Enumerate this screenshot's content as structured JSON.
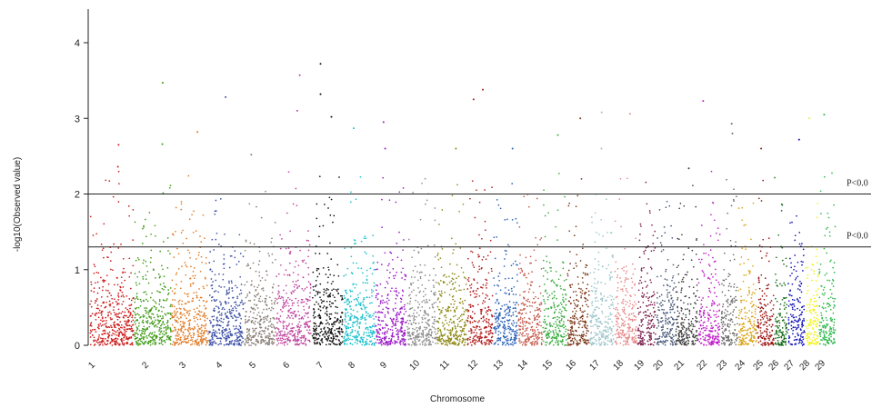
{
  "chart_data": {
    "type": "scatter",
    "xlabel": "Chromosome",
    "ylabel": "-log10(Observed value)",
    "ylim": [
      0,
      4.45
    ],
    "yticks": [
      0,
      1,
      2,
      3,
      4
    ],
    "grid": false,
    "categories": [
      "1",
      "2",
      "3",
      "4",
      "5",
      "6",
      "7",
      "8",
      "9",
      "10",
      "11",
      "12",
      "13",
      "14",
      "15",
      "16",
      "17",
      "18",
      "19",
      "20",
      "21",
      "22",
      "23",
      "24",
      "25",
      "26",
      "27",
      "28",
      "29"
    ],
    "chromosome_widths": [
      48,
      40,
      40,
      38,
      34,
      38,
      34,
      34,
      34,
      32,
      32,
      28,
      26,
      26,
      26,
      24,
      26,
      24,
      20,
      20,
      24,
      24,
      18,
      20,
      18,
      14,
      18,
      14,
      18
    ],
    "colors": [
      "#cc1b1b",
      "#3f9a16",
      "#e07a24",
      "#3b4fa6",
      "#8a7f78",
      "#c0449e",
      "#111111",
      "#18c0cc",
      "#9a19c7",
      "#8c8c8c",
      "#8f8a17",
      "#b21f1f",
      "#2a62b8",
      "#c45a4d",
      "#3cad40",
      "#7a3818",
      "#9ec6cc",
      "#e88a8a",
      "#7a1f4d",
      "#4a5a7a",
      "#404040",
      "#c01ec8",
      "#6b6b6b",
      "#d8a416",
      "#9b1414",
      "#186b18",
      "#1212b8",
      "#f2f214",
      "#2ab848"
    ],
    "thresholds": [
      {
        "value": 2.0,
        "label": "P<0.0"
      },
      {
        "value": 1.301,
        "label": "P<0.0"
      }
    ],
    "notable_points": [
      {
        "chromosome": "1",
        "y": 2.65
      },
      {
        "chromosome": "1",
        "y": 2.36
      },
      {
        "chromosome": "2",
        "y": 3.47
      },
      {
        "chromosome": "2",
        "y": 2.66
      },
      {
        "chromosome": "3",
        "y": 2.82
      },
      {
        "chromosome": "4",
        "y": 3.28
      },
      {
        "chromosome": "5",
        "y": 2.52
      },
      {
        "chromosome": "6",
        "y": 3.57
      },
      {
        "chromosome": "6",
        "y": 3.1
      },
      {
        "chromosome": "7",
        "y": 3.72
      },
      {
        "chromosome": "7",
        "y": 3.32
      },
      {
        "chromosome": "7",
        "y": 3.02
      },
      {
        "chromosome": "8",
        "y": 2.87
      },
      {
        "chromosome": "9",
        "y": 2.95
      },
      {
        "chromosome": "9",
        "y": 2.6
      },
      {
        "chromosome": "11",
        "y": 2.6
      },
      {
        "chromosome": "12",
        "y": 3.38
      },
      {
        "chromosome": "12",
        "y": 3.25
      },
      {
        "chromosome": "13",
        "y": 2.6
      },
      {
        "chromosome": "15",
        "y": 2.78
      },
      {
        "chromosome": "16",
        "y": 3.0
      },
      {
        "chromosome": "17",
        "y": 3.08
      },
      {
        "chromosome": "17",
        "y": 2.6
      },
      {
        "chromosome": "18",
        "y": 3.06
      },
      {
        "chromosome": "21",
        "y": 2.34
      },
      {
        "chromosome": "22",
        "y": 3.23
      },
      {
        "chromosome": "23",
        "y": 2.93
      },
      {
        "chromosome": "23",
        "y": 2.8
      },
      {
        "chromosome": "25",
        "y": 2.6
      },
      {
        "chromosome": "27",
        "y": 2.72
      },
      {
        "chromosome": "28",
        "y": 3.0
      },
      {
        "chromosome": "29",
        "y": 3.05
      }
    ]
  }
}
